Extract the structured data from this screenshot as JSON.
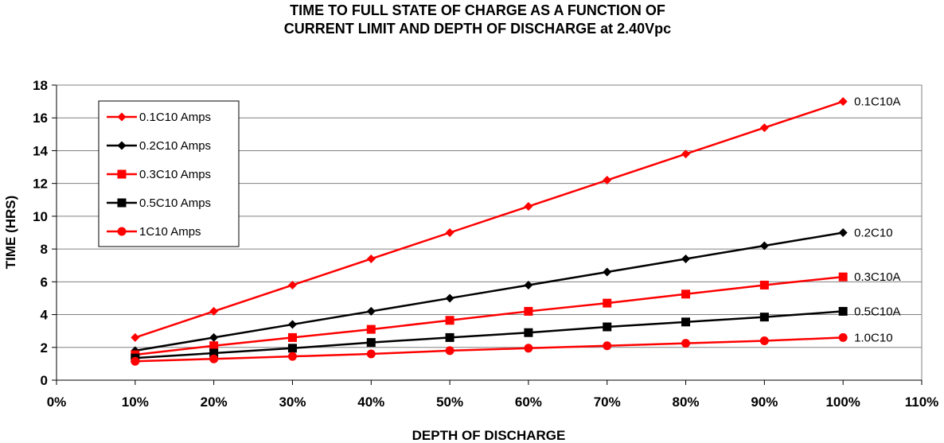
{
  "chart_data": {
    "type": "line",
    "title_lines": [
      "TIME TO FULL STATE OF CHARGE AS A FUNCTION OF",
      "CURRENT LIMIT AND DEPTH OF DISCHARGE at 2.40Vpc"
    ],
    "xlabel": "DEPTH OF DISCHARGE",
    "ylabel": "TIME (HRS)",
    "xlim": [
      0,
      110
    ],
    "ylim": [
      0,
      18
    ],
    "x_ticks": [
      "0%",
      "10%",
      "20%",
      "30%",
      "40%",
      "50%",
      "60%",
      "70%",
      "80%",
      "90%",
      "100%",
      "110%"
    ],
    "y_ticks": [
      "0",
      "2",
      "4",
      "6",
      "8",
      "10",
      "12",
      "14",
      "16",
      "18"
    ],
    "grid": "horizontal",
    "legend_position": "top-left",
    "x": [
      10,
      20,
      30,
      40,
      50,
      60,
      70,
      80,
      90,
      100
    ],
    "series": [
      {
        "name": "0.1C10 Amps",
        "end_label": "0.1C10A",
        "color": "#ff0000",
        "marker": "diamond",
        "values": [
          2.6,
          4.2,
          5.8,
          7.4,
          9.0,
          10.6,
          12.2,
          13.8,
          15.4,
          17.0
        ]
      },
      {
        "name": "0.2C10 Amps",
        "end_label": "0.2C10",
        "color": "#000000",
        "marker": "diamond",
        "values": [
          1.8,
          2.6,
          3.4,
          4.2,
          5.0,
          5.8,
          6.6,
          7.4,
          8.2,
          9.0
        ]
      },
      {
        "name": "0.3C10 Amps",
        "end_label": "0.3C10A",
        "color": "#ff0000",
        "marker": "square",
        "values": [
          1.55,
          2.1,
          2.6,
          3.1,
          3.65,
          4.2,
          4.7,
          5.25,
          5.8,
          6.3
        ]
      },
      {
        "name": "0.5C10 Amps",
        "end_label": "0.5C10A",
        "color": "#000000",
        "marker": "square",
        "values": [
          1.35,
          1.65,
          1.95,
          2.3,
          2.6,
          2.9,
          3.25,
          3.55,
          3.85,
          4.2
        ]
      },
      {
        "name": "1C10 Amps",
        "end_label": "1.0C10",
        "color": "#ff0000",
        "marker": "circle",
        "values": [
          1.15,
          1.3,
          1.45,
          1.6,
          1.8,
          1.95,
          2.1,
          2.25,
          2.4,
          2.6
        ]
      }
    ]
  }
}
